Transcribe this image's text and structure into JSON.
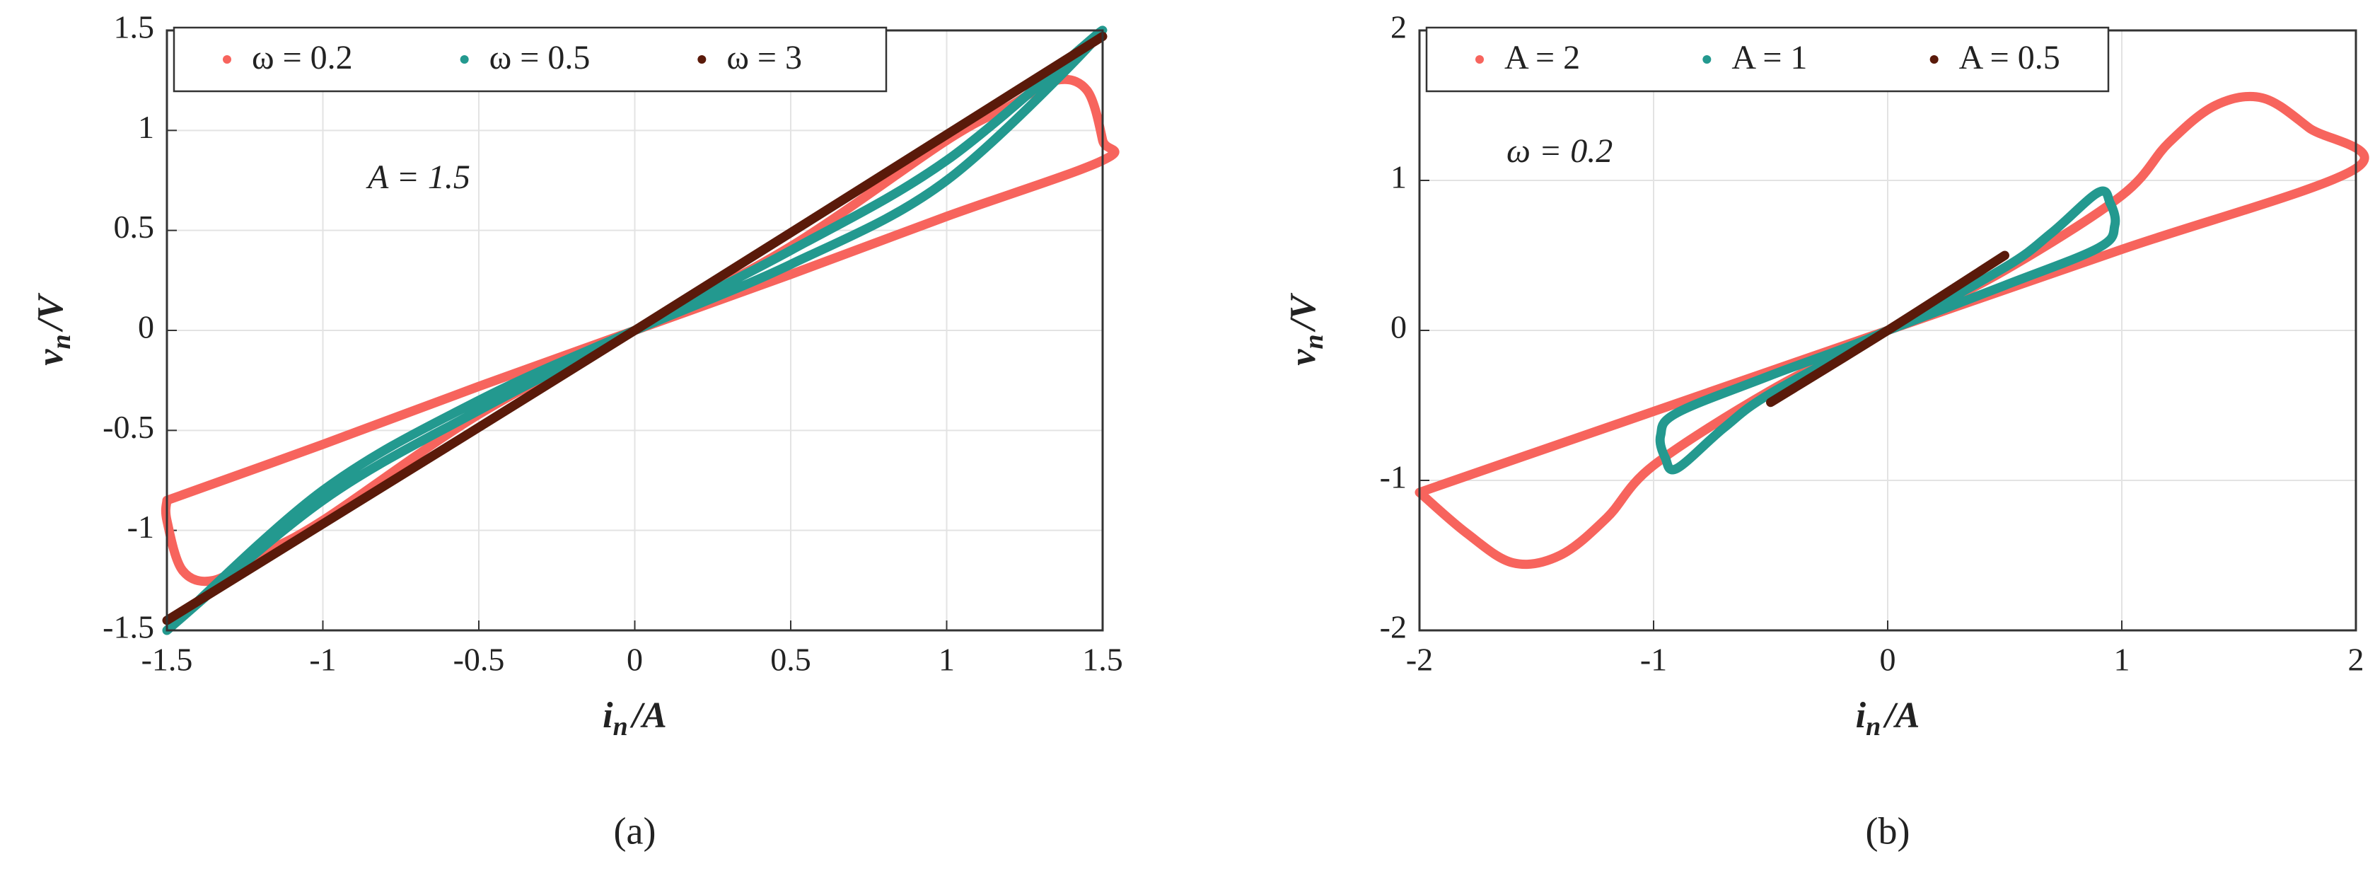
{
  "chart_data": [
    {
      "type": "line",
      "caption": "(a)",
      "xlabel": [
        "i",
        "n",
        "/A"
      ],
      "ylabel": [
        "v",
        "n",
        "/V"
      ],
      "annotation": "A = 1.5",
      "xlim": [
        -1.5,
        1.5
      ],
      "ylim": [
        -1.5,
        1.5
      ],
      "xticks": [
        -1.5,
        -1,
        -0.5,
        0,
        0.5,
        1,
        1.5
      ],
      "yticks": [
        -1.5,
        -1,
        -0.5,
        0,
        0.5,
        1,
        1.5
      ],
      "grid": true,
      "legend": "top",
      "series": [
        {
          "name": "ω = 0.2",
          "color": "#f7645d",
          "x": [
            -1.5,
            -1,
            -0.5,
            0,
            0.5,
            1,
            1.5,
            1.5,
            1.45,
            1.35,
            1.2,
            1,
            0.5,
            0,
            -0.5,
            -1,
            -1.2,
            -1.35,
            -1.45,
            -1.5,
            -1.5
          ],
          "y": [
            -0.85,
            -0.57,
            -0.28,
            0,
            0.28,
            0.57,
            0.85,
            0.95,
            1.2,
            1.25,
            1.12,
            0.95,
            0.42,
            0,
            -0.42,
            -0.95,
            -1.12,
            -1.25,
            -1.2,
            -0.95,
            -0.85
          ]
        },
        {
          "name": "ω = 0.5",
          "color": "#23998f",
          "x": [
            -1.5,
            -1,
            -0.5,
            0,
            0.5,
            1,
            1.5,
            1,
            0.5,
            0,
            -0.5,
            -1,
            -1.5
          ],
          "y": [
            -1.5,
            -0.8,
            -0.35,
            0,
            0.33,
            0.75,
            1.5,
            0.85,
            0.4,
            0,
            -0.4,
            -0.85,
            -1.5
          ]
        },
        {
          "name": "ω = 3",
          "color": "#5a1a0a",
          "x": [
            -1.5,
            0,
            1.5
          ],
          "y": [
            -1.45,
            0,
            1.47
          ]
        }
      ]
    },
    {
      "type": "line",
      "caption": "(b)",
      "xlabel": [
        "i",
        "n",
        "/A"
      ],
      "ylabel": [
        "v",
        "n",
        "/V"
      ],
      "annotation": "ω = 0.2",
      "xlim": [
        -2,
        2
      ],
      "ylim": [
        -2,
        2
      ],
      "xticks": [
        -2,
        -1,
        0,
        1,
        2
      ],
      "yticks": [
        -2,
        -1,
        0,
        1,
        2
      ],
      "grid": true,
      "legend": "top",
      "series": [
        {
          "name": "A = 2",
          "color": "#f7645d",
          "x": [
            -2,
            -1,
            0,
            1,
            2,
            1.8,
            1.6,
            1.4,
            1.2,
            1,
            0.5,
            0,
            -0.5,
            -1,
            -1.2,
            -1.4,
            -1.6,
            -1.8,
            -2
          ],
          "y": [
            -1.08,
            -0.54,
            0,
            0.54,
            1.08,
            1.35,
            1.55,
            1.5,
            1.25,
            0.9,
            0.4,
            0,
            -0.4,
            -0.9,
            -1.25,
            -1.5,
            -1.55,
            -1.35,
            -1.08
          ]
        },
        {
          "name": "A = 1",
          "color": "#23998f",
          "x": [
            0,
            0.5,
            0.9,
            0.97,
            0.95,
            0.9,
            0.7,
            0.5,
            0,
            -0.5,
            -0.9,
            -0.97,
            -0.95,
            -0.9,
            -0.7,
            -0.5,
            0
          ],
          "y": [
            0,
            0.3,
            0.55,
            0.7,
            0.85,
            0.92,
            0.65,
            0.42,
            0,
            -0.3,
            -0.55,
            -0.7,
            -0.85,
            -0.92,
            -0.65,
            -0.42,
            0
          ]
        },
        {
          "name": "A = 0.5",
          "color": "#5a1a0a",
          "x": [
            -0.5,
            0,
            0.5
          ],
          "y": [
            -0.48,
            0,
            0.5
          ]
        }
      ]
    }
  ]
}
